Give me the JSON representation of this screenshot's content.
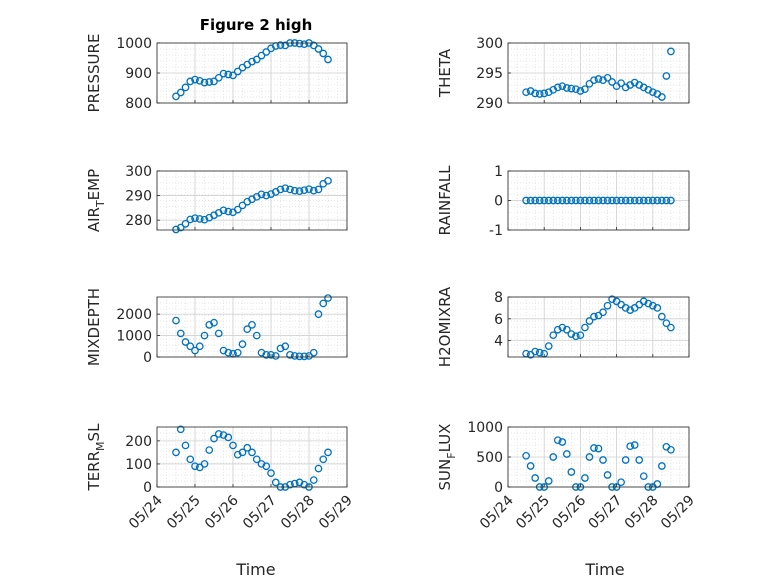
{
  "figure": {
    "title": "Figure 2 high",
    "xlabel": "Time",
    "date_ticks": [
      "05/24",
      "05/25",
      "05/26",
      "05/27",
      "05/28",
      "05/29"
    ],
    "marker_color": "#0072BD"
  },
  "chart_data": [
    {
      "type": "scatter",
      "ylabel": "PRESSURE",
      "ylim": [
        800,
        1000
      ],
      "yticks": [
        "800",
        "900",
        "1000"
      ],
      "series": [
        {
          "x": [
            "05/24 12:00",
            "05/24 15:00",
            "05/24 18:00",
            "05/24 21:00",
            "05/25 00:00",
            "05/25 03:00",
            "05/25 06:00",
            "05/25 09:00",
            "05/25 12:00",
            "05/25 15:00",
            "05/25 18:00",
            "05/25 21:00",
            "05/26 00:00",
            "05/26 03:00",
            "05/26 06:00",
            "05/26 09:00",
            "05/26 12:00",
            "05/26 15:00",
            "05/26 18:00",
            "05/26 21:00",
            "05/27 00:00",
            "05/27 03:00",
            "05/27 06:00",
            "05/27 09:00",
            "05/27 12:00",
            "05/27 15:00",
            "05/27 18:00",
            "05/27 21:00",
            "05/28 00:00",
            "05/28 03:00",
            "05/28 06:00",
            "05/28 09:00",
            "05/28 12:00"
          ],
          "y": [
            822,
            835,
            852,
            872,
            878,
            874,
            868,
            870,
            872,
            884,
            898,
            895,
            892,
            905,
            918,
            928,
            938,
            945,
            958,
            970,
            982,
            990,
            993,
            992,
            1000,
            1000,
            998,
            996,
            1000,
            992,
            980,
            965,
            945
          ]
        }
      ]
    },
    {
      "type": "scatter",
      "ylabel": "THETA",
      "ylim": [
        290,
        300
      ],
      "yticks": [
        "290",
        "295",
        "300"
      ],
      "series": [
        {
          "x": [
            "05/24 12:00",
            "05/24 15:00",
            "05/24 18:00",
            "05/24 21:00",
            "05/25 00:00",
            "05/25 03:00",
            "05/25 06:00",
            "05/25 09:00",
            "05/25 12:00",
            "05/25 15:00",
            "05/25 18:00",
            "05/25 21:00",
            "05/26 00:00",
            "05/26 03:00",
            "05/26 06:00",
            "05/26 09:00",
            "05/26 12:00",
            "05/26 15:00",
            "05/26 18:00",
            "05/26 21:00",
            "05/27 00:00",
            "05/27 03:00",
            "05/27 06:00",
            "05/27 09:00",
            "05/27 12:00",
            "05/27 15:00",
            "05/27 18:00",
            "05/27 21:00",
            "05/28 00:00",
            "05/28 03:00",
            "05/28 06:00",
            "05/28 09:00",
            "05/28 12:00"
          ],
          "y": [
            291.8,
            292.0,
            291.6,
            291.5,
            291.6,
            291.8,
            292.2,
            292.6,
            292.8,
            292.5,
            292.4,
            292.3,
            292.0,
            292.3,
            293.2,
            293.8,
            294.0,
            293.8,
            294.2,
            293.5,
            292.8,
            293.3,
            292.6,
            293.0,
            293.4,
            293.0,
            292.6,
            292.2,
            291.8,
            291.5,
            291.0,
            294.5,
            298.6
          ]
        }
      ]
    },
    {
      "type": "scatter",
      "ylabel": "AIR_TEMP",
      "ylim": [
        276,
        300
      ],
      "yticks": [
        "280",
        "290",
        "300"
      ],
      "series": [
        {
          "x": [
            "05/24 12:00",
            "05/24 15:00",
            "05/24 18:00",
            "05/24 21:00",
            "05/25 00:00",
            "05/25 03:00",
            "05/25 06:00",
            "05/25 09:00",
            "05/25 12:00",
            "05/25 15:00",
            "05/25 18:00",
            "05/25 21:00",
            "05/26 00:00",
            "05/26 03:00",
            "05/26 06:00",
            "05/26 09:00",
            "05/26 12:00",
            "05/26 15:00",
            "05/26 18:00",
            "05/26 21:00",
            "05/27 00:00",
            "05/27 03:00",
            "05/27 06:00",
            "05/27 09:00",
            "05/27 12:00",
            "05/27 15:00",
            "05/27 18:00",
            "05/27 21:00",
            "05/28 00:00",
            "05/28 03:00",
            "05/28 06:00",
            "05/28 09:00",
            "05/28 12:00"
          ],
          "y": [
            276.2,
            277.0,
            278.5,
            280.3,
            280.8,
            280.5,
            280.2,
            281.0,
            282.0,
            283.0,
            284.0,
            283.5,
            283.2,
            284.3,
            286.0,
            287.5,
            288.5,
            289.5,
            290.5,
            290.0,
            290.6,
            291.5,
            292.5,
            293.0,
            292.5,
            292.0,
            291.8,
            292.2,
            292.6,
            292.0,
            292.5,
            294.8,
            296.0
          ]
        }
      ]
    },
    {
      "type": "scatter",
      "ylabel": "RAINFALL",
      "ylim": [
        -1,
        1
      ],
      "yticks": [
        "-1",
        "0",
        "1"
      ],
      "series": [
        {
          "x": [
            "05/24 12:00",
            "05/24 15:00",
            "05/24 18:00",
            "05/24 21:00",
            "05/25 00:00",
            "05/25 03:00",
            "05/25 06:00",
            "05/25 09:00",
            "05/25 12:00",
            "05/25 15:00",
            "05/25 18:00",
            "05/25 21:00",
            "05/26 00:00",
            "05/26 03:00",
            "05/26 06:00",
            "05/26 09:00",
            "05/26 12:00",
            "05/26 15:00",
            "05/26 18:00",
            "05/26 21:00",
            "05/27 00:00",
            "05/27 03:00",
            "05/27 06:00",
            "05/27 09:00",
            "05/27 12:00",
            "05/27 15:00",
            "05/27 18:00",
            "05/27 21:00",
            "05/28 00:00",
            "05/28 03:00",
            "05/28 06:00",
            "05/28 09:00",
            "05/28 12:00"
          ],
          "y": [
            0,
            0,
            0,
            0,
            0,
            0,
            0,
            0,
            0,
            0,
            0,
            0,
            0,
            0,
            0,
            0,
            0,
            0,
            0,
            0,
            0,
            0,
            0,
            0,
            0,
            0,
            0,
            0,
            0,
            0,
            0,
            0,
            0
          ]
        }
      ]
    },
    {
      "type": "scatter",
      "ylabel": "MIXDEPTH",
      "ylim": [
        0,
        2800
      ],
      "yticks": [
        "0",
        "1000",
        "2000"
      ],
      "series": [
        {
          "x": [
            "05/24 12:00",
            "05/24 15:00",
            "05/24 18:00",
            "05/24 21:00",
            "05/25 00:00",
            "05/25 03:00",
            "05/25 06:00",
            "05/25 09:00",
            "05/25 12:00",
            "05/25 15:00",
            "05/25 18:00",
            "05/25 21:00",
            "05/26 00:00",
            "05/26 03:00",
            "05/26 06:00",
            "05/26 09:00",
            "05/26 12:00",
            "05/26 15:00",
            "05/26 18:00",
            "05/26 21:00",
            "05/27 00:00",
            "05/27 03:00",
            "05/27 06:00",
            "05/27 09:00",
            "05/27 12:00",
            "05/27 15:00",
            "05/27 18:00",
            "05/27 21:00",
            "05/28 00:00",
            "05/28 03:00",
            "05/28 06:00",
            "05/28 09:00",
            "05/28 12:00"
          ],
          "y": [
            1700,
            1100,
            700,
            500,
            300,
            500,
            1000,
            1500,
            1600,
            1100,
            300,
            200,
            150,
            200,
            600,
            1300,
            1500,
            1000,
            200,
            100,
            100,
            50,
            400,
            500,
            100,
            50,
            30,
            30,
            50,
            200,
            2000,
            2500,
            2750
          ]
        }
      ]
    },
    {
      "type": "scatter",
      "ylabel": "H2OMIXRA",
      "ylim": [
        2.5,
        8
      ],
      "yticks": [
        "4",
        "6",
        "8"
      ],
      "series": [
        {
          "x": [
            "05/24 12:00",
            "05/24 15:00",
            "05/24 18:00",
            "05/24 21:00",
            "05/25 00:00",
            "05/25 03:00",
            "05/25 06:00",
            "05/25 09:00",
            "05/25 12:00",
            "05/25 15:00",
            "05/25 18:00",
            "05/25 21:00",
            "05/26 00:00",
            "05/26 03:00",
            "05/26 06:00",
            "05/26 09:00",
            "05/26 12:00",
            "05/26 15:00",
            "05/26 18:00",
            "05/26 21:00",
            "05/27 00:00",
            "05/27 03:00",
            "05/27 06:00",
            "05/27 09:00",
            "05/27 12:00",
            "05/27 15:00",
            "05/27 18:00",
            "05/27 21:00",
            "05/28 00:00",
            "05/28 03:00",
            "05/28 06:00",
            "05/28 09:00",
            "05/28 12:00"
          ],
          "y": [
            2.8,
            2.7,
            3.0,
            2.9,
            2.8,
            3.5,
            4.5,
            5.0,
            5.2,
            5.0,
            4.6,
            4.4,
            4.5,
            5.2,
            5.8,
            6.2,
            6.3,
            6.6,
            7.2,
            7.8,
            7.6,
            7.3,
            7.0,
            6.8,
            7.0,
            7.3,
            7.6,
            7.4,
            7.2,
            7.0,
            6.2,
            5.6,
            5.2
          ]
        }
      ]
    },
    {
      "type": "scatter",
      "ylabel": "TERR_MSL",
      "ylim": [
        0,
        260
      ],
      "yticks": [
        "0",
        "100",
        "200"
      ],
      "series": [
        {
          "x": [
            "05/24 12:00",
            "05/24 15:00",
            "05/24 18:00",
            "05/24 21:00",
            "05/25 00:00",
            "05/25 03:00",
            "05/25 06:00",
            "05/25 09:00",
            "05/25 12:00",
            "05/25 15:00",
            "05/25 18:00",
            "05/25 21:00",
            "05/26 00:00",
            "05/26 03:00",
            "05/26 06:00",
            "05/26 09:00",
            "05/26 12:00",
            "05/26 15:00",
            "05/26 18:00",
            "05/26 21:00",
            "05/27 00:00",
            "05/27 03:00",
            "05/27 06:00",
            "05/27 09:00",
            "05/27 12:00",
            "05/27 15:00",
            "05/27 18:00",
            "05/27 21:00",
            "05/28 00:00",
            "05/28 03:00",
            "05/28 06:00",
            "05/28 09:00",
            "05/28 12:00"
          ],
          "y": [
            150,
            250,
            180,
            120,
            90,
            85,
            100,
            160,
            210,
            230,
            225,
            215,
            180,
            140,
            150,
            170,
            150,
            120,
            100,
            90,
            60,
            20,
            0,
            0,
            10,
            15,
            20,
            10,
            0,
            30,
            80,
            120,
            150
          ]
        }
      ]
    },
    {
      "type": "scatter",
      "ylabel": "SUN_FLUX",
      "ylim": [
        0,
        1000
      ],
      "yticks": [
        "0",
        "500",
        "1000"
      ],
      "series": [
        {
          "x": [
            "05/24 12:00",
            "05/24 15:00",
            "05/24 18:00",
            "05/24 21:00",
            "05/25 00:00",
            "05/25 03:00",
            "05/25 06:00",
            "05/25 09:00",
            "05/25 12:00",
            "05/25 15:00",
            "05/25 18:00",
            "05/25 21:00",
            "05/26 00:00",
            "05/26 03:00",
            "05/26 06:00",
            "05/26 09:00",
            "05/26 12:00",
            "05/26 15:00",
            "05/26 18:00",
            "05/26 21:00",
            "05/27 00:00",
            "05/27 03:00",
            "05/27 06:00",
            "05/27 09:00",
            "05/27 12:00",
            "05/27 15:00",
            "05/27 18:00",
            "05/27 21:00",
            "05/28 00:00",
            "05/28 03:00",
            "05/28 06:00",
            "05/28 09:00",
            "05/28 12:00"
          ],
          "y": [
            520,
            350,
            150,
            0,
            0,
            100,
            500,
            780,
            750,
            550,
            250,
            0,
            0,
            150,
            500,
            650,
            640,
            450,
            200,
            0,
            0,
            80,
            450,
            680,
            700,
            450,
            180,
            0,
            0,
            50,
            350,
            670,
            620
          ]
        }
      ]
    }
  ]
}
